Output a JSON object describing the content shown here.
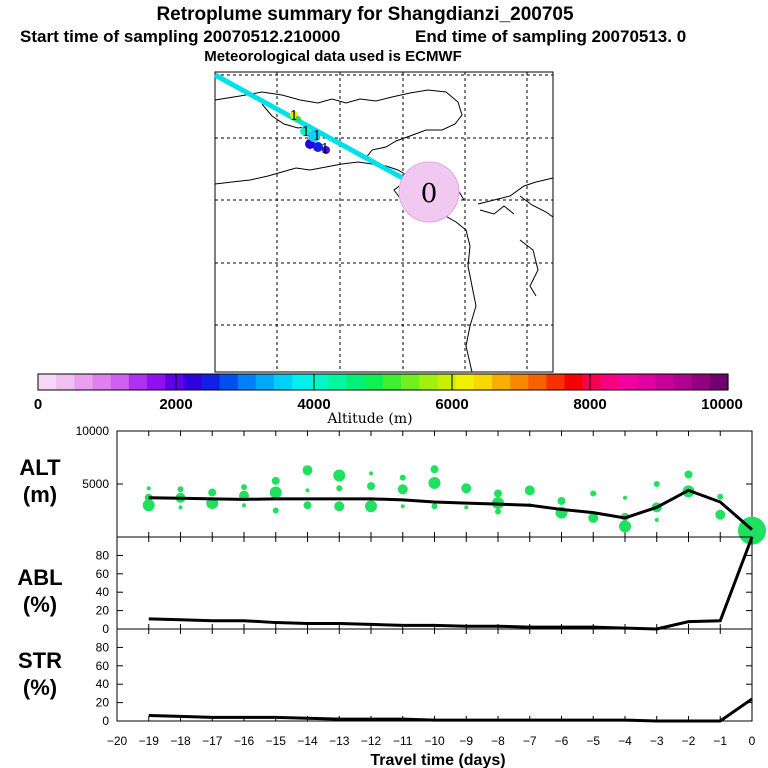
{
  "header": {
    "title": "Retroplume summary for Shangdianzi_200705",
    "start_text": "Start time of sampling 20070512.210000",
    "end_text": "End time of sampling 20070513.     0",
    "met_text": "Meteorological data used is ECMWF"
  },
  "map": {
    "release_marker": "0",
    "plume_day_labels": [
      "1",
      "1",
      "1",
      "1"
    ]
  },
  "colorbar": {
    "min": 0,
    "max": 10000,
    "tick_labels": [
      "0",
      "2000",
      "4000",
      "6000",
      "8000",
      "10000"
    ],
    "label": "Altitude (m)",
    "colors": [
      "#f8d8f8",
      "#f0c0f0",
      "#e8a0f0",
      "#e080f0",
      "#d060f0",
      "#b030f0",
      "#9010f0",
      "#6000e8",
      "#3000e0",
      "#1020e8",
      "#0050f0",
      "#0080f8",
      "#00a8f8",
      "#00d0f8",
      "#00f0f0",
      "#00f8c8",
      "#00f8a0",
      "#00f078",
      "#10f050",
      "#40f030",
      "#70f020",
      "#a0f010",
      "#c8f000",
      "#f0f000",
      "#f8d800",
      "#f8b000",
      "#f88800",
      "#f86000",
      "#f83000",
      "#f80000",
      "#f80050",
      "#f80080",
      "#f000a0",
      "#e000a0",
      "#c80098",
      "#b00090",
      "#900080",
      "#700070"
    ]
  },
  "axes": {
    "x_tick_labels": [
      "−20",
      "−19",
      "−18",
      "−17",
      "−16",
      "−15",
      "−14",
      "−13",
      "−12",
      "−11",
      "−10",
      "−9",
      "−8",
      "−7",
      "−6",
      "−5",
      "−4",
      "−3",
      "−2",
      "−1",
      "0"
    ],
    "x_label": "Travel time (days)"
  },
  "chart_data": [
    {
      "type": "line",
      "panel": "alt",
      "title_line1": "ALT",
      "title_line2": "(m)",
      "ylim": [
        0,
        10000
      ],
      "y_tick_labels": [
        "5000",
        "10000"
      ],
      "x": [
        -19,
        -18,
        -17,
        -16,
        -15,
        -14,
        -13,
        -12,
        -11,
        -10,
        -9,
        -8,
        -7,
        -6,
        -5,
        -4,
        -3,
        -2,
        -1,
        0
      ],
      "mean_altitude": [
        3700,
        3650,
        3600,
        3550,
        3600,
        3600,
        3600,
        3600,
        3500,
        3300,
        3200,
        3100,
        3000,
        2600,
        2300,
        1800,
        2800,
        4400,
        3300,
        700
      ],
      "clusters": [
        {
          "x": -19,
          "y": 4600
        },
        {
          "x": -19,
          "y": 3700
        },
        {
          "x": -19,
          "y": 3000
        },
        {
          "x": -18,
          "y": 4500
        },
        {
          "x": -18,
          "y": 3700
        },
        {
          "x": -18,
          "y": 2800
        },
        {
          "x": -17,
          "y": 4200
        },
        {
          "x": -17,
          "y": 3200
        },
        {
          "x": -16,
          "y": 4700
        },
        {
          "x": -16,
          "y": 3900
        },
        {
          "x": -16,
          "y": 3000
        },
        {
          "x": -15,
          "y": 5300
        },
        {
          "x": -15,
          "y": 4200
        },
        {
          "x": -15,
          "y": 2500
        },
        {
          "x": -14,
          "y": 6300
        },
        {
          "x": -14,
          "y": 4400
        },
        {
          "x": -14,
          "y": 3000
        },
        {
          "x": -13,
          "y": 5800
        },
        {
          "x": -13,
          "y": 4600
        },
        {
          "x": -13,
          "y": 2900
        },
        {
          "x": -12,
          "y": 6000
        },
        {
          "x": -12,
          "y": 4800
        },
        {
          "x": -12,
          "y": 2900
        },
        {
          "x": -11,
          "y": 5600
        },
        {
          "x": -11,
          "y": 4500
        },
        {
          "x": -11,
          "y": 2900
        },
        {
          "x": -10,
          "y": 6400
        },
        {
          "x": -10,
          "y": 5100
        },
        {
          "x": -10,
          "y": 2900
        },
        {
          "x": -9,
          "y": 4600
        },
        {
          "x": -9,
          "y": 2800
        },
        {
          "x": -8,
          "y": 4100
        },
        {
          "x": -8,
          "y": 3200
        },
        {
          "x": -8,
          "y": 2400
        },
        {
          "x": -7,
          "y": 4400
        },
        {
          "x": -7,
          "y": 3000
        },
        {
          "x": -6,
          "y": 3400
        },
        {
          "x": -6,
          "y": 2300
        },
        {
          "x": -5,
          "y": 4100
        },
        {
          "x": -5,
          "y": 1800
        },
        {
          "x": -4,
          "y": 3700
        },
        {
          "x": -4,
          "y": 1900
        },
        {
          "x": -4,
          "y": 1000
        },
        {
          "x": -3,
          "y": 5000
        },
        {
          "x": -3,
          "y": 2800
        },
        {
          "x": -3,
          "y": 1600
        },
        {
          "x": -2,
          "y": 5900
        },
        {
          "x": -2,
          "y": 4300
        },
        {
          "x": -1,
          "y": 3800
        },
        {
          "x": -1,
          "y": 2100
        },
        {
          "x": 0,
          "y": 600
        }
      ]
    },
    {
      "type": "line",
      "panel": "abl",
      "title_line1": "ABL",
      "title_line2": "(%)",
      "ylim": [
        0,
        100
      ],
      "y_tick_labels": [
        "0",
        "20",
        "40",
        "60",
        "80"
      ],
      "x": [
        -19,
        -18,
        -17,
        -16,
        -15,
        -14,
        -13,
        -12,
        -11,
        -10,
        -9,
        -8,
        -7,
        -6,
        -5,
        -4,
        -3,
        -2,
        -1,
        0
      ],
      "values": [
        11,
        10,
        9,
        9,
        7,
        6,
        6,
        5,
        4,
        4,
        3,
        3,
        2,
        2,
        2,
        1,
        0,
        8,
        9,
        100
      ]
    },
    {
      "type": "line",
      "panel": "str",
      "title_line1": "STR",
      "title_line2": "(%)",
      "ylim": [
        0,
        100
      ],
      "y_tick_labels": [
        "0",
        "20",
        "40",
        "60",
        "80"
      ],
      "x": [
        -19,
        -18,
        -17,
        -16,
        -15,
        -14,
        -13,
        -12,
        -11,
        -10,
        -9,
        -8,
        -7,
        -6,
        -5,
        -4,
        -3,
        -2,
        -1,
        0
      ],
      "values": [
        6,
        5,
        4,
        4,
        4,
        3,
        2,
        2,
        2,
        1,
        1,
        1,
        1,
        1,
        1,
        1,
        0,
        0,
        0,
        24
      ]
    }
  ]
}
